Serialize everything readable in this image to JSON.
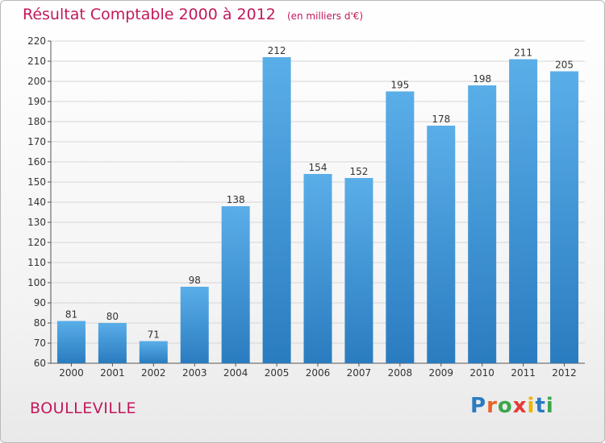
{
  "chart_data": {
    "type": "bar",
    "title": "Résultat Comptable 2000 à 2012",
    "subtitle": "(en milliers d'€)",
    "xlabel": "",
    "ylabel": "",
    "categories": [
      "2000",
      "2001",
      "2002",
      "2003",
      "2004",
      "2005",
      "2006",
      "2007",
      "2008",
      "2009",
      "2010",
      "2011",
      "2012"
    ],
    "values": [
      81,
      80,
      71,
      98,
      138,
      212,
      154,
      152,
      195,
      178,
      198,
      211,
      205
    ],
    "ylim": [
      60,
      220
    ],
    "yticks": [
      60,
      70,
      80,
      90,
      100,
      110,
      120,
      130,
      140,
      150,
      160,
      170,
      180,
      190,
      200,
      210,
      220
    ],
    "grid": true,
    "legend": "none",
    "bar_color_top": "#5aaee8",
    "bar_color_bottom": "#2a7cc0"
  },
  "footer": {
    "commune": "BOULLEVILLE",
    "brand_letters": [
      "P",
      "r",
      "o",
      "x",
      "i",
      "t",
      "i"
    ],
    "brand_colors": [
      "#2a7cc0",
      "#e8632a",
      "#3aa74b",
      "#e53935",
      "#f0b400",
      "#2a7cc0",
      "#3aa74b"
    ]
  },
  "colors": {
    "title": "#c2185b",
    "grid": "#d6d6d6",
    "axis": "#555555"
  }
}
